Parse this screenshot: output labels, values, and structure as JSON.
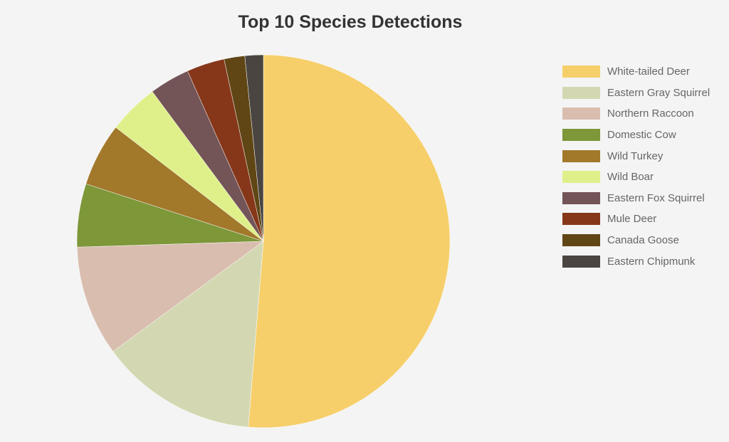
{
  "chart_data": {
    "type": "pie",
    "title": "Top 10 Species Detections",
    "legend_position": "right",
    "slices": [
      {
        "label": "White-tailed Deer",
        "value": 51.5,
        "color": "#f6cf6b"
      },
      {
        "label": "Eastern Gray Squirrel",
        "value": 13.7,
        "color": "#d3d8b2"
      },
      {
        "label": "Northern Raccoon",
        "value": 9.6,
        "color": "#d9bdaf"
      },
      {
        "label": "Domestic Cow",
        "value": 5.5,
        "color": "#7d9739"
      },
      {
        "label": "Wild Turkey",
        "value": 5.5,
        "color": "#a2782b"
      },
      {
        "label": "Wild Boar",
        "value": 4.4,
        "color": "#dff08b"
      },
      {
        "label": "Eastern Fox Squirrel",
        "value": 3.5,
        "color": "#735457"
      },
      {
        "label": "Mule Deer",
        "value": 3.3,
        "color": "#86371a"
      },
      {
        "label": "Canada Goose",
        "value": 1.8,
        "color": "#5f4614"
      },
      {
        "label": "Eastern Chipmunk",
        "value": 1.6,
        "color": "#4a4540"
      }
    ]
  }
}
